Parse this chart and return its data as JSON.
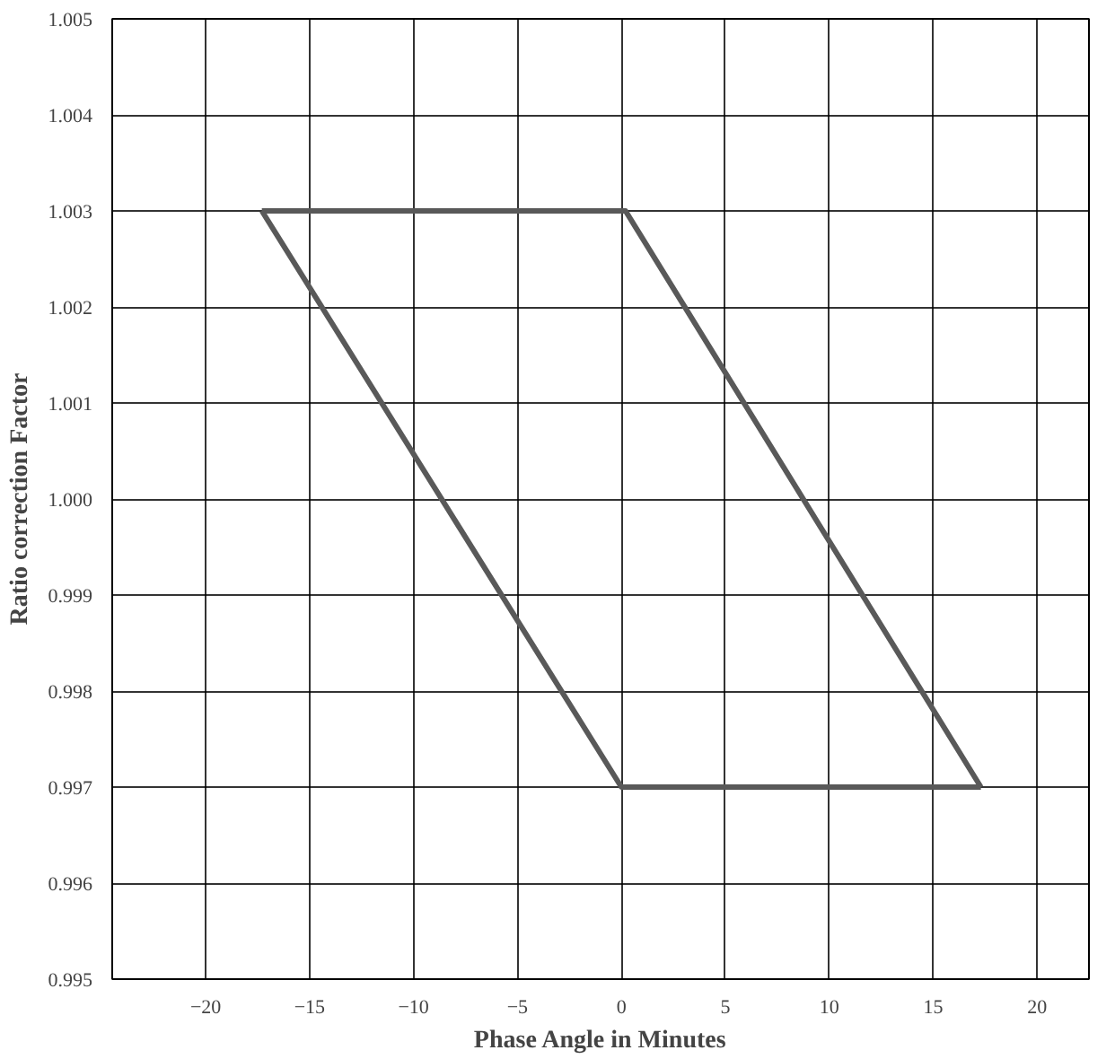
{
  "chart_data": {
    "type": "line",
    "xlabel": "Phase Angle in Minutes",
    "ylabel": "Ratio correction Factor",
    "series": [
      {
        "color": "#595959",
        "x": [
          -17.3,
          0.2,
          17.3
        ],
        "values": [
          1.003,
          1.003,
          0.997
        ]
      },
      {
        "color": "#595959",
        "x": [
          -17.3,
          0,
          17.3
        ],
        "values": [
          1.003,
          0.997,
          0.997
        ]
      }
    ],
    "xlim": [
      -24.5,
      22.5
    ],
    "xticks": [
      -20,
      -15,
      -10,
      -5,
      0,
      5,
      10,
      15,
      20
    ],
    "ylim": [
      0.995,
      1.005
    ],
    "yticks": [
      {
        "value": 0.995,
        "label": "0.995"
      },
      {
        "value": 0.996,
        "label": "0.996"
      },
      {
        "value": 0.997,
        "label": "0.997"
      },
      {
        "value": 0.998,
        "label": "0.998"
      },
      {
        "value": 0.999,
        "label": "0.999"
      },
      {
        "value": 1.0,
        "label": "1.000"
      },
      {
        "value": 1.001,
        "label": "1.001"
      },
      {
        "value": 1.002,
        "label": "1.002"
      },
      {
        "value": 1.003,
        "label": "1.003"
      },
      {
        "value": 1.004,
        "label": "1.004"
      },
      {
        "value": 1.005,
        "label": "1.005"
      }
    ],
    "grid": true,
    "marker": "none",
    "line_style": "solid"
  }
}
